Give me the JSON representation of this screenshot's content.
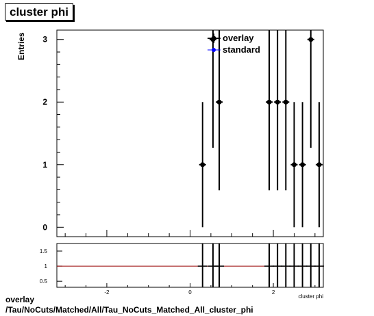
{
  "title": "cluster phi",
  "chart_data": [
    {
      "type": "scatter",
      "ylabel": "Entries",
      "xlabel": "cluster phi",
      "xlim": [
        -3.2,
        3.2
      ],
      "ylim": [
        -0.15,
        3.15
      ],
      "yticks": [
        0,
        1,
        2,
        3
      ],
      "legend": {
        "placement": "top-right",
        "entries": [
          "overlay",
          "standard"
        ]
      },
      "series": [
        {
          "name": "overlay",
          "color": "#000000",
          "x": [
            0.3,
            0.55,
            0.7,
            1.9,
            2.1,
            2.3,
            2.5,
            2.7,
            2.9,
            3.1
          ],
          "y": [
            1,
            3,
            2,
            2,
            2,
            2,
            1,
            1,
            3,
            1
          ],
          "yerr": [
            1,
            1.73,
            1.41,
            1.41,
            1.41,
            1.41,
            1,
            1,
            1.73,
            1
          ]
        },
        {
          "name": "standard",
          "color": "#0000ff",
          "x": [],
          "y": []
        }
      ]
    },
    {
      "type": "line",
      "xlim": [
        -3.2,
        3.2
      ],
      "ylim": [
        0.3,
        1.75
      ],
      "yticks": [
        0.5,
        1,
        1.5
      ],
      "ytick_labels": [
        "0.5",
        "1",
        "1.5"
      ],
      "xticks": [
        -2,
        0,
        2
      ],
      "xtick_labels": [
        "-2",
        "0",
        "2"
      ],
      "reference_line": 1,
      "reference_color": "#990000",
      "x": [
        0.3,
        0.55,
        0.7,
        1.9,
        2.1,
        2.3,
        2.5,
        2.7,
        2.9,
        3.1
      ],
      "y": [
        1,
        1,
        1,
        1,
        1,
        1,
        1,
        1,
        1,
        1
      ]
    }
  ],
  "footer": {
    "line1": "overlay",
    "line2": "/Tau/NoCuts/Matched/All/Tau_NoCuts_Matched_All_cluster_phi"
  }
}
